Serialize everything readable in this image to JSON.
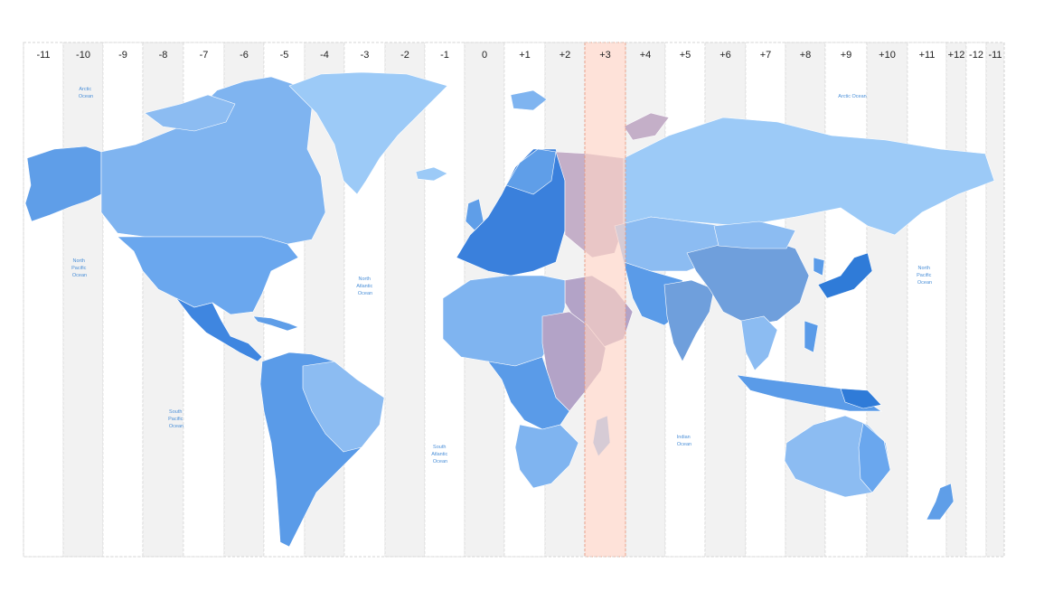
{
  "zones": [
    {
      "label": "-11"
    },
    {
      "label": "-10"
    },
    {
      "label": "-9"
    },
    {
      "label": "-8"
    },
    {
      "label": "-7"
    },
    {
      "label": "-6"
    },
    {
      "label": "-5"
    },
    {
      "label": "-4"
    },
    {
      "label": "-3"
    },
    {
      "label": "-2"
    },
    {
      "label": "-1"
    },
    {
      "label": "0"
    },
    {
      "label": "+1"
    },
    {
      "label": "+2"
    },
    {
      "label": "+3"
    },
    {
      "label": "+4"
    },
    {
      "label": "+5"
    },
    {
      "label": "+6"
    },
    {
      "label": "+7"
    },
    {
      "label": "+8"
    },
    {
      "label": "+9"
    },
    {
      "label": "+10"
    },
    {
      "label": "+11"
    },
    {
      "label": "+12"
    },
    {
      "label": "-12"
    },
    {
      "label": "-11"
    }
  ],
  "highlighted_zone": "+3",
  "colors": {
    "highlight_fill": "#fdd3c5",
    "highlight_stroke": "#e8957a",
    "stripe_shade": "#f2f2f2",
    "land_light": "#9cc9f5",
    "land_mid": "#6eaaf0",
    "land_dark": "#3f86e0",
    "ocean_text": "#4a8fd8"
  },
  "oceans": {
    "arctic_1": [
      "Arctic",
      "Ocean"
    ],
    "arctic_2": [
      "Arctic Ocean"
    ],
    "north_pacific_1": [
      "North",
      "Pacific",
      "Ocean"
    ],
    "north_pacific_2": [
      "North",
      "Pacific",
      "Ocean"
    ],
    "north_atlantic": [
      "North",
      "Atlantic",
      "Ocean"
    ],
    "south_pacific": [
      "South",
      "Pacific",
      "Ocean"
    ],
    "south_atlantic": [
      "South",
      "Atlantic",
      "Ocean"
    ],
    "indian": [
      "Indian",
      "Ocean"
    ]
  }
}
